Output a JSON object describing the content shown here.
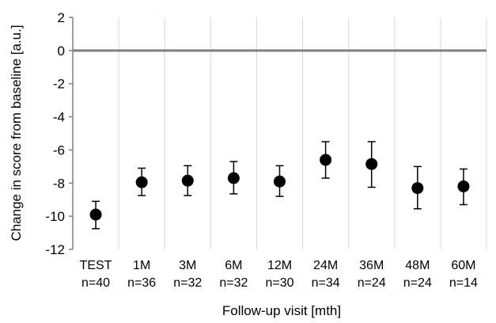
{
  "chart_data": {
    "type": "scatter",
    "title": "",
    "xlabel": "Follow-up visit [mth]",
    "ylabel": "Change in score from baseline [a.u.]",
    "ylim": [
      -12,
      2
    ],
    "yticks": [
      2,
      0,
      -2,
      -4,
      -6,
      -8,
      -10,
      -12
    ],
    "grid": "vertical",
    "categories": [
      "TEST",
      "1M",
      "3M",
      "6M",
      "12M",
      "24M",
      "36M",
      "48M",
      "60M"
    ],
    "n_labels": [
      "n=40",
      "n=36",
      "n=32",
      "n=32",
      "n=30",
      "n=34",
      "n=24",
      "n=24",
      "n=14"
    ],
    "series": [
      {
        "values": [
          -9.9,
          -7.95,
          -7.85,
          -7.7,
          -7.9,
          -6.6,
          -6.85,
          -8.3,
          -8.2
        ],
        "error_low": [
          -10.75,
          -8.75,
          -8.75,
          -8.65,
          -8.8,
          -7.7,
          -8.25,
          -9.55,
          -9.3
        ],
        "error_high": [
          -9.1,
          -7.1,
          -6.95,
          -6.7,
          -6.95,
          -5.5,
          -5.5,
          -7.0,
          -7.15
        ],
        "color": "#000000"
      }
    ],
    "zero_line_color": "#808080",
    "grid_color": "#d9d9d9"
  }
}
